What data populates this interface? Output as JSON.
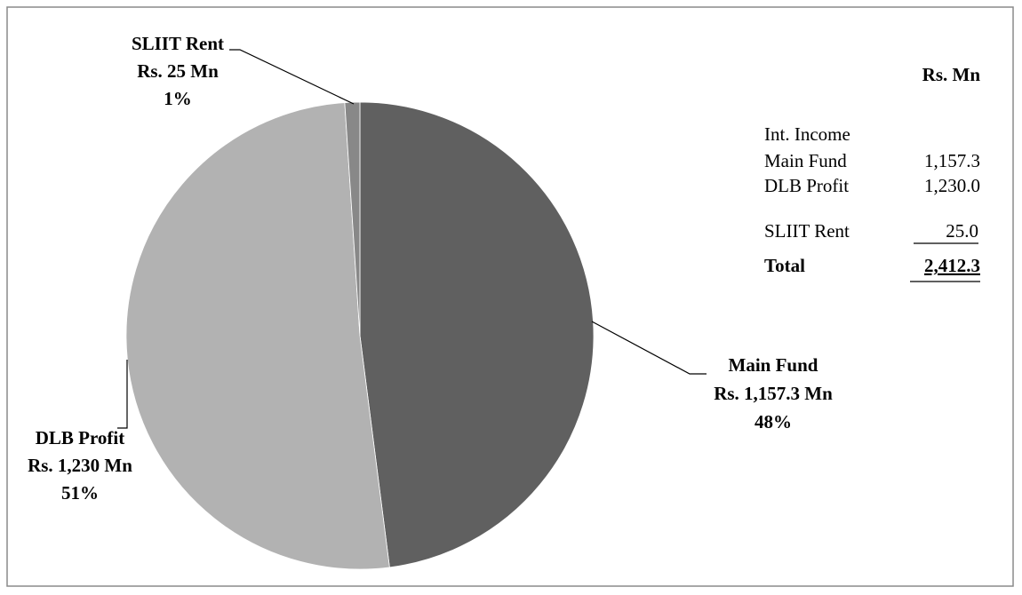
{
  "chart_data": {
    "type": "pie",
    "categories": [
      "Main Fund",
      "DLB Profit",
      "SLIIT Rent"
    ],
    "values": [
      1157.3,
      1230,
      25
    ],
    "value_labels": [
      "Rs. 1,157.3 Mn",
      "Rs. 1,230 Mn",
      "Rs. 25 Mn"
    ],
    "percent_labels": [
      "48%",
      "51%",
      "1%"
    ],
    "colors": [
      "#606060",
      "#b2b2b2",
      "#888888"
    ],
    "table": {
      "title": "Rs. Mn",
      "header": "Int. Income",
      "rows": [
        [
          "Main Fund",
          "1,157.3"
        ],
        [
          "DLB Profit",
          "1,230.0"
        ],
        [
          "SLIIT Rent",
          "25.0"
        ]
      ],
      "total": [
        "Total",
        "2,412.3"
      ]
    }
  }
}
